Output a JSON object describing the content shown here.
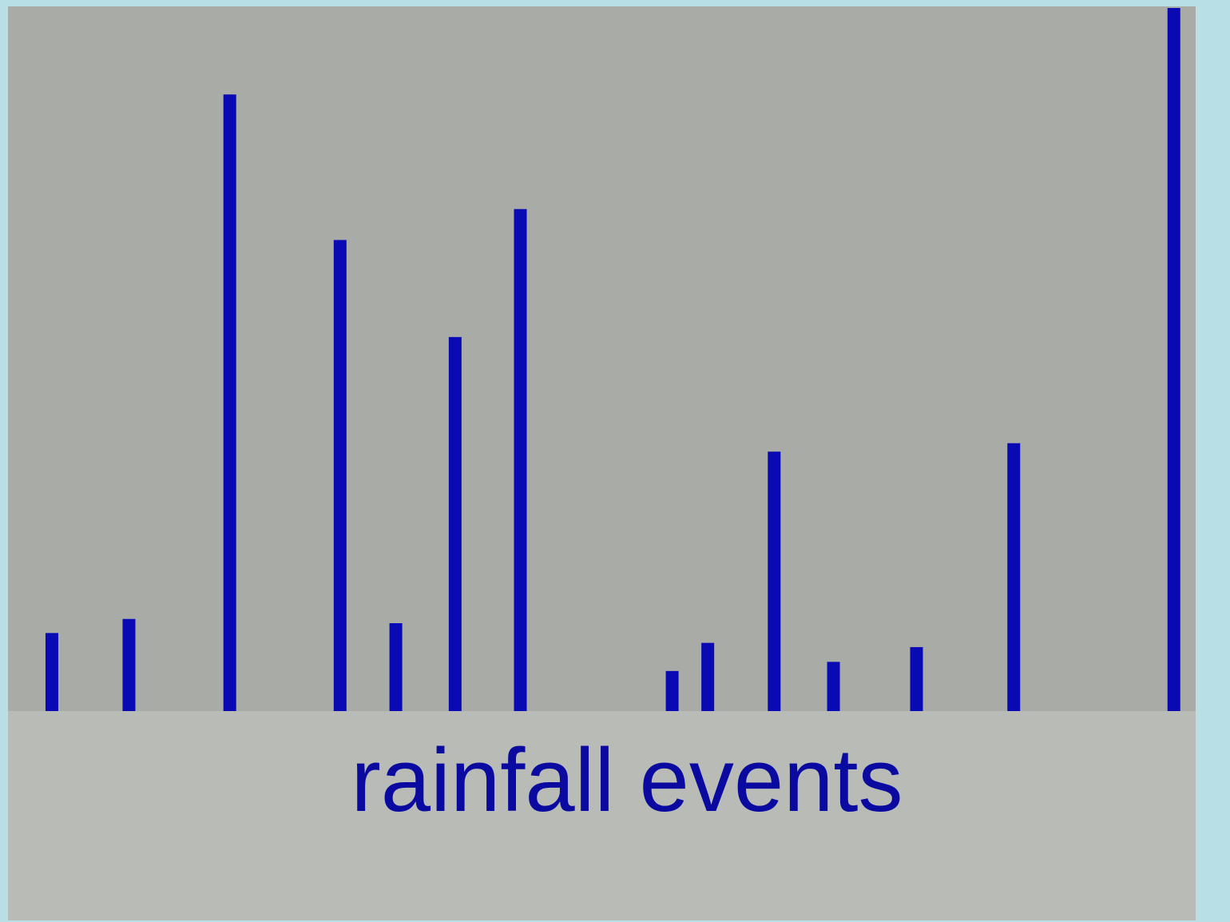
{
  "chart_data": {
    "type": "stem",
    "xlabel": "rainfall events",
    "color": "#0a0ab4",
    "x": [
      3.7,
      10.2,
      18.7,
      28.0,
      32.7,
      37.7,
      43.2,
      56.0,
      59.0,
      64.6,
      69.6,
      76.6,
      84.8,
      98.3
    ],
    "values": [
      11.1,
      13.1,
      87.7,
      67.0,
      12.5,
      53.2,
      71.4,
      5.7,
      9.7,
      36.9,
      7.0,
      9.1,
      38.1,
      100
    ],
    "xlim": [
      0,
      100
    ],
    "ylim": [
      0,
      100
    ]
  }
}
